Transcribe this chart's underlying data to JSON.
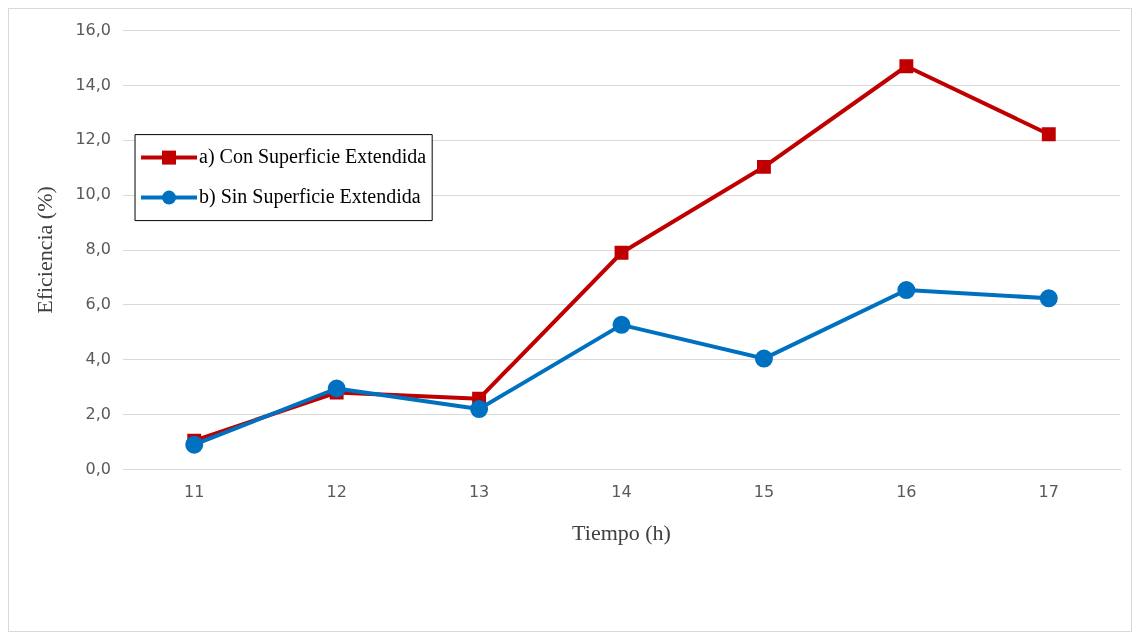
{
  "chart_data": {
    "type": "line",
    "xlabel": "Tiempo (h)",
    "ylabel": "Eficiencia (%)",
    "categories": [
      "11",
      "12",
      "13",
      "14",
      "15",
      "16",
      "17"
    ],
    "series": [
      {
        "name": "a) Con Superficie Extendida",
        "color": "#c00000",
        "marker": "square",
        "values": [
          1.05,
          2.8,
          2.58,
          7.9,
          11.03,
          14.7,
          12.22
        ]
      },
      {
        "name": "b) Sin Superficie Extendida",
        "color": "#0070c0",
        "marker": "circle",
        "values": [
          0.9,
          2.95,
          2.2,
          5.27,
          4.04,
          6.54,
          6.24
        ]
      }
    ],
    "ylim": [
      0,
      16
    ],
    "yticks": [
      {
        "value": 0,
        "label": "0,0"
      },
      {
        "value": 2,
        "label": "2,0"
      },
      {
        "value": 4,
        "label": "4,0"
      },
      {
        "value": 6,
        "label": "6,0"
      },
      {
        "value": 8,
        "label": "8,0"
      },
      {
        "value": 10,
        "label": "10,0"
      },
      {
        "value": 12,
        "label": "12,0"
      },
      {
        "value": 14,
        "label": "14,0"
      },
      {
        "value": 16,
        "label": "16,0"
      }
    ],
    "grid": "y",
    "legend": "top left",
    "line_style": "solid"
  }
}
